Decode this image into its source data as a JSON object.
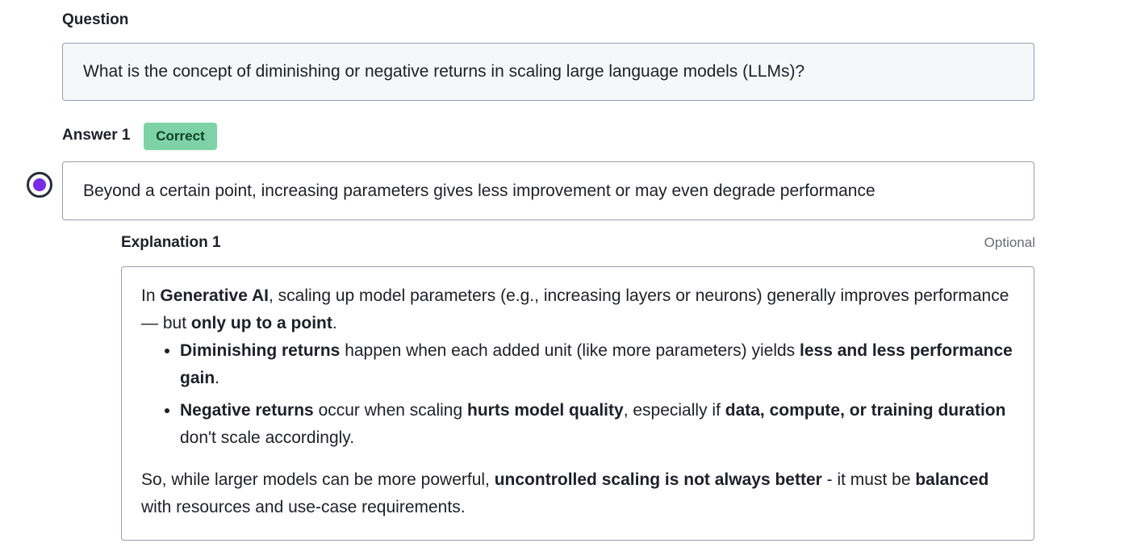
{
  "question": {
    "label": "Question",
    "text": "What is the concept of diminishing or negative returns in scaling large language models (LLMs)?"
  },
  "answer": {
    "label": "Answer 1",
    "badge": "Correct",
    "text": "Beyond a certain point, increasing parameters gives less improvement or may even degrade performance",
    "selected": true
  },
  "explanation": {
    "label": "Explanation 1",
    "optional_label": "Optional",
    "intro": {
      "t1": "In ",
      "b1": "Generative AI",
      "t2": ", scaling up model parameters (e.g., increasing layers or neurons) generally improves performance — but ",
      "b2": "only up to a point",
      "t3": "."
    },
    "bullets": [
      {
        "b1": "Diminishing returns",
        "t1": " happen when each added unit (like more parameters) yields ",
        "b2": "less and less performance gain",
        "t2": "."
      },
      {
        "b1": "Negative returns",
        "t1": " occur when scaling ",
        "b2": "hurts model quality",
        "t2": ", especially if ",
        "b3": "data, compute, or training duration",
        "t3": " don't scale accordingly."
      }
    ],
    "closing": {
      "t1": "So, while larger models can be more powerful, ",
      "b1": "uncontrolled scaling is not always better",
      "t2": " - it must be ",
      "b2": "balanced",
      "t3": " with resources and use-case requirements."
    }
  },
  "colors": {
    "badge_bg": "#7dd3a6",
    "radio_selected": "#7a29e6",
    "border": "#9a9ab3",
    "question_bg": "#f6f7f9"
  }
}
